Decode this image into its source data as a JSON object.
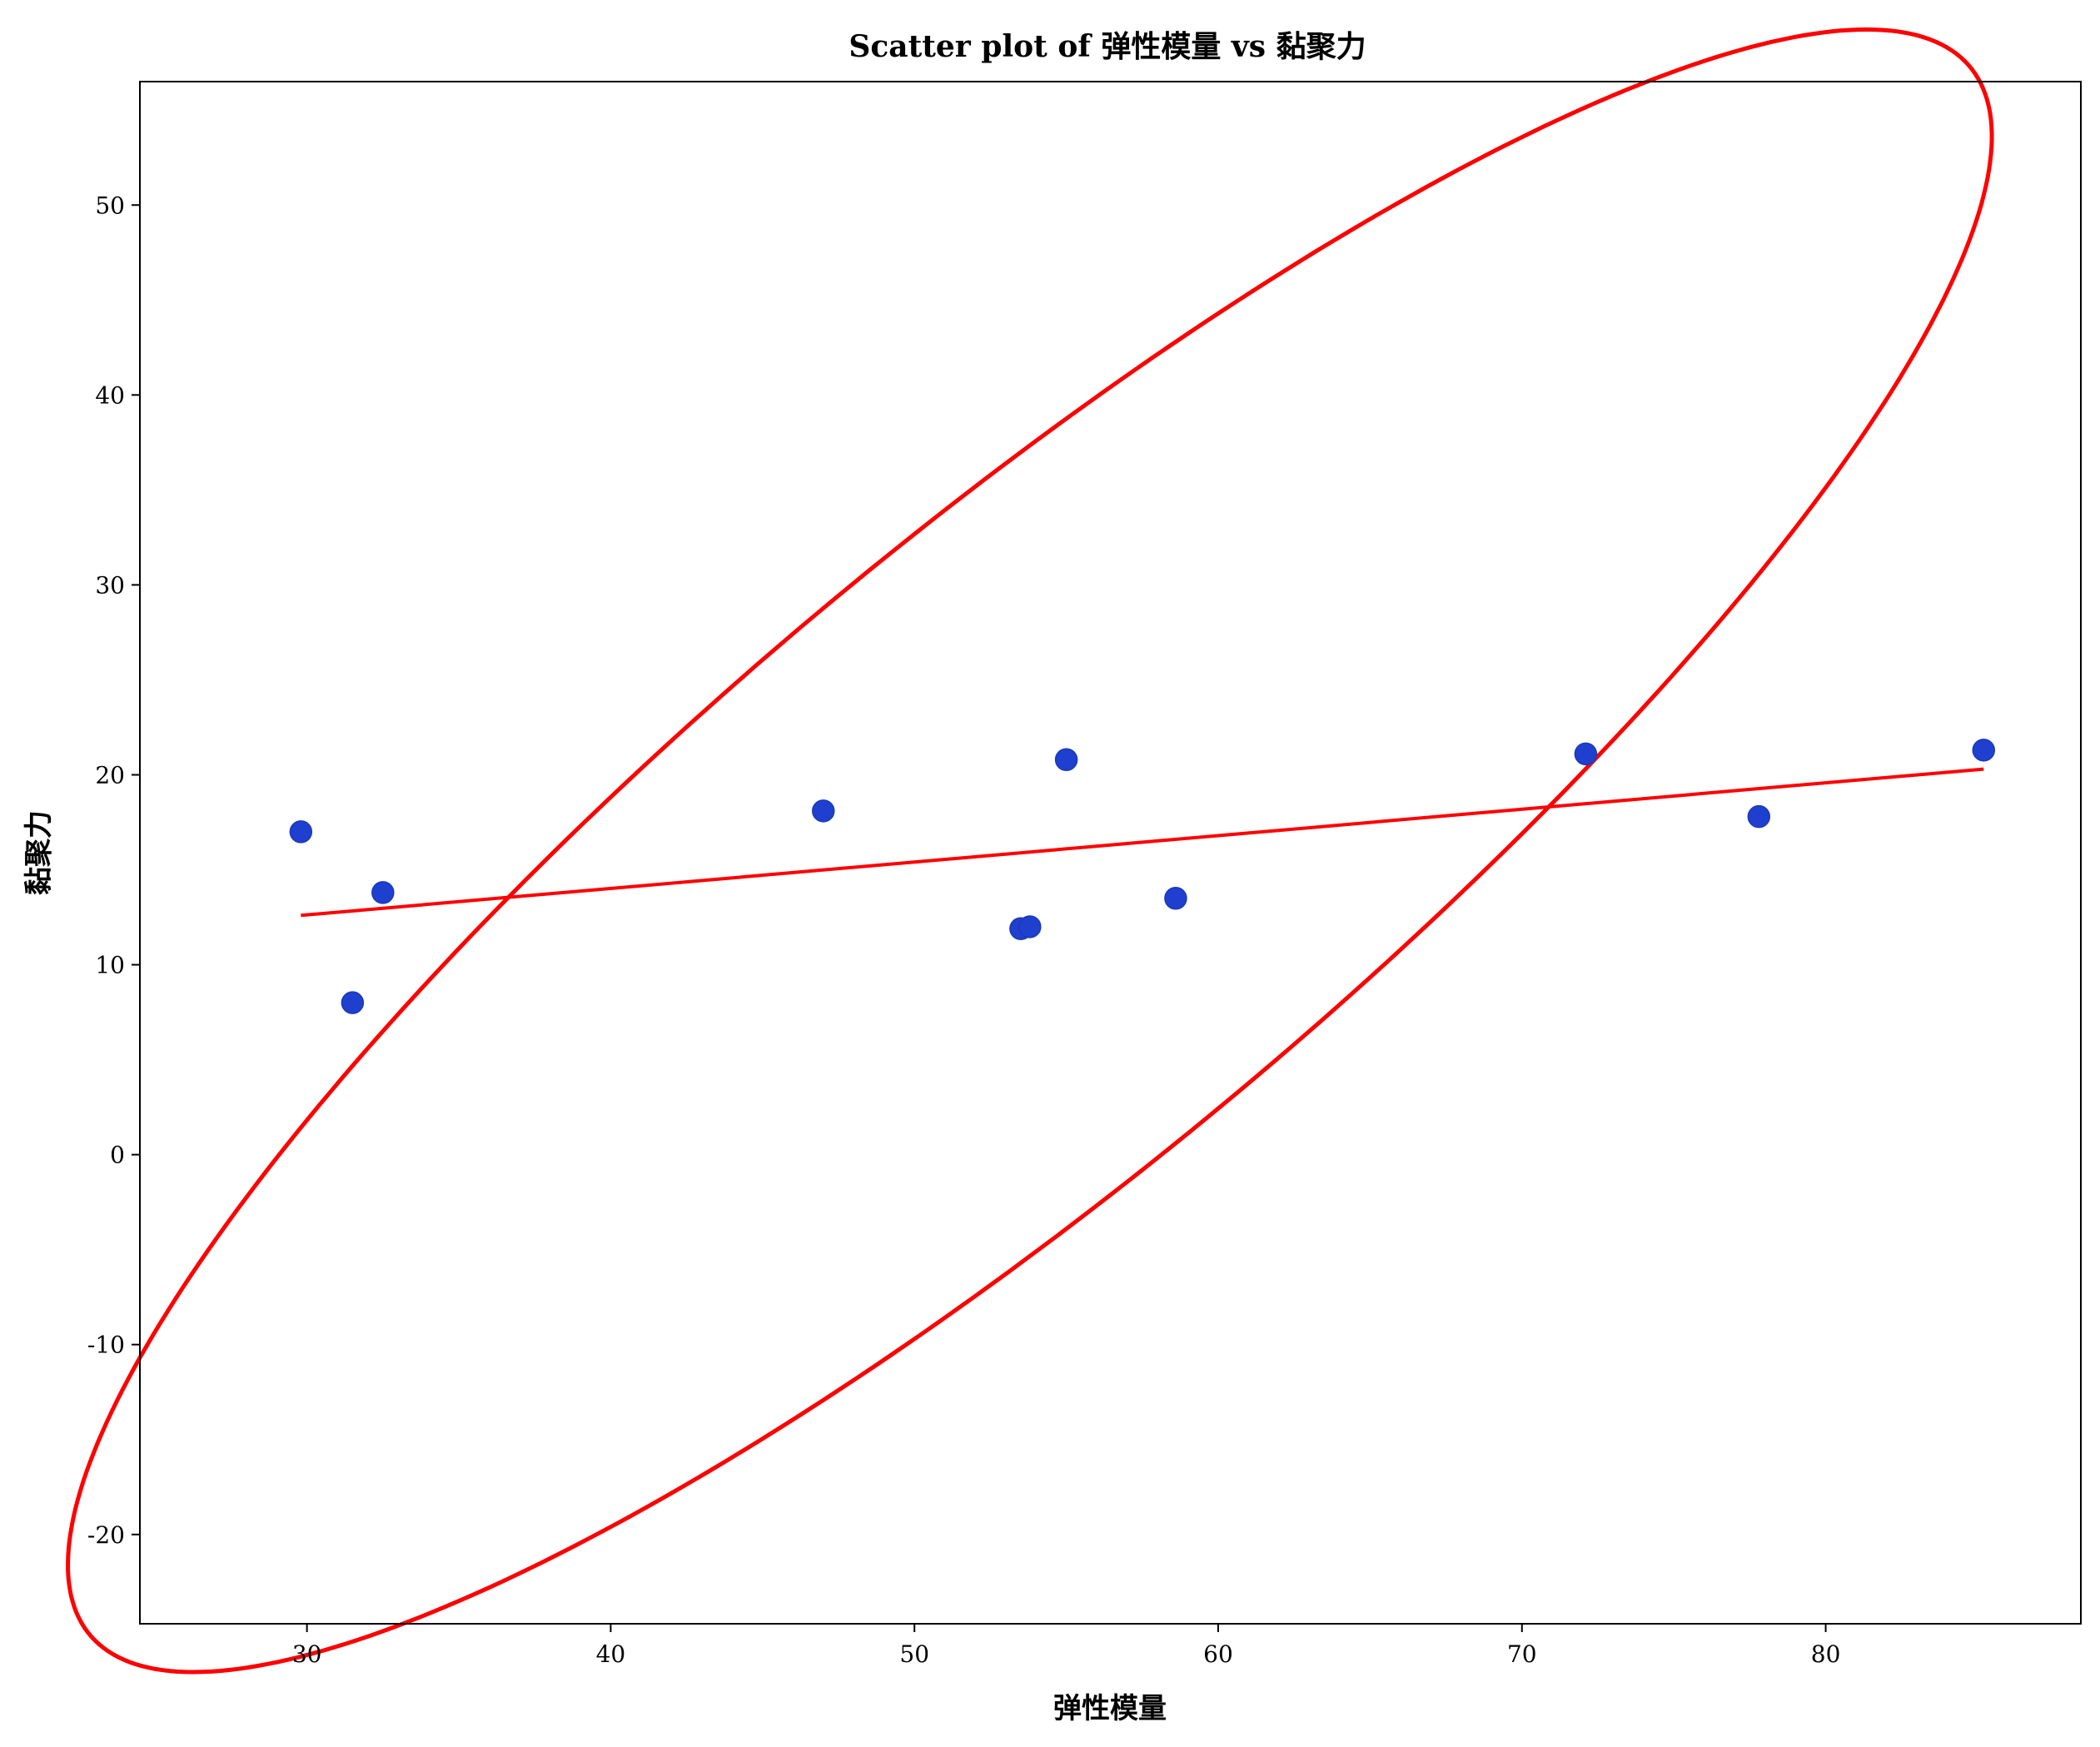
{
  "chart_data": {
    "type": "scatter",
    "title": "Scatter plot of 弹性模量 vs 黏聚力",
    "xlabel": "弹性模量",
    "ylabel": "黏聚力",
    "xlim": [
      24.5,
      88.4
    ],
    "ylim": [
      -24.7,
      56.5
    ],
    "x_ticks": [
      30,
      40,
      50,
      60,
      70,
      80
    ],
    "y_ticks": [
      -20,
      -10,
      0,
      10,
      20,
      30,
      40,
      50
    ],
    "grid": false,
    "series": [
      {
        "type": "scatter",
        "color": "#1f3fcf",
        "points": [
          {
            "x": 29.8,
            "y": 17.0
          },
          {
            "x": 31.5,
            "y": 8.0
          },
          {
            "x": 32.5,
            "y": 13.8
          },
          {
            "x": 47.0,
            "y": 18.1
          },
          {
            "x": 53.5,
            "y": 11.9
          },
          {
            "x": 53.8,
            "y": 12.0
          },
          {
            "x": 55.0,
            "y": 20.8
          },
          {
            "x": 58.6,
            "y": 13.5
          },
          {
            "x": 72.1,
            "y": 21.1
          },
          {
            "x": 77.8,
            "y": 17.8
          },
          {
            "x": 85.2,
            "y": 21.3
          }
        ]
      },
      {
        "type": "line",
        "color": "#ff0000",
        "points": [
          {
            "x": 29.8,
            "y": 12.6
          },
          {
            "x": 85.2,
            "y": 20.3
          }
        ]
      },
      {
        "type": "ellipse",
        "color": "#ff0000",
        "center": {
          "x": 53.8,
          "y": 16.0
        },
        "semi_axis_major": 52.0,
        "semi_axis_minor": 13.0,
        "angle_deg": 55.0
      }
    ]
  }
}
